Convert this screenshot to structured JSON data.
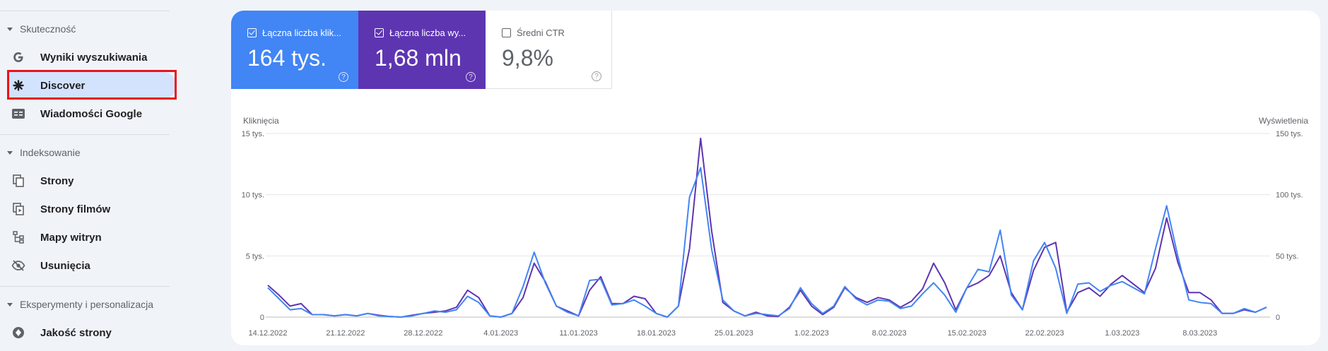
{
  "sidebar": {
    "sections": [
      {
        "label": "Skuteczność"
      },
      {
        "label": "Indeksowanie"
      },
      {
        "label": "Eksperymenty i personalizacja"
      }
    ],
    "items": [
      {
        "label": "Wyniki wyszukiwania",
        "icon": "google-g-icon"
      },
      {
        "label": "Discover",
        "icon": "discover-asterisk-icon"
      },
      {
        "label": "Wiadomości Google",
        "icon": "google-news-icon"
      },
      {
        "label": "Strony",
        "icon": "pages-icon"
      },
      {
        "label": "Strony filmów",
        "icon": "video-pages-icon"
      },
      {
        "label": "Mapy witryn",
        "icon": "sitemap-icon"
      },
      {
        "label": "Usunięcia",
        "icon": "removals-eye-off-icon"
      },
      {
        "label": "Jakość strony",
        "icon": "page-experience-icon"
      }
    ]
  },
  "metrics": [
    {
      "label": "Łączna liczba klik...",
      "value": "164 tys.",
      "checked": true,
      "color": "#4285f4"
    },
    {
      "label": "Łączna liczba wy...",
      "value": "1,68 mln",
      "checked": true,
      "color": "#5e35b1"
    },
    {
      "label": "Średni CTR",
      "value": "9,8%",
      "checked": false,
      "color": "#ffffff"
    }
  ],
  "help_glyph": "?",
  "chart_data": {
    "type": "line",
    "y_left_label": "Kliknięcia",
    "y_right_label": "Wyświetlenia",
    "y_left_ticks": [
      "0",
      "5 tys.",
      "10 tys.",
      "15 tys."
    ],
    "y_right_ticks": [
      "0",
      "50 tys.",
      "100 tys.",
      "150 tys."
    ],
    "ylim_left": [
      0,
      15000
    ],
    "ylim_right": [
      0,
      150000
    ],
    "x_tick_labels": [
      "14.12.2022",
      "21.12.2022",
      "28.12.2022",
      "4.01.2023",
      "11.01.2023",
      "18.01.2023",
      "25.01.2023",
      "1.02.2023",
      "8.02.2023",
      "15.02.2023",
      "22.02.2023",
      "1.03.2023",
      "8.03.2023"
    ],
    "x_tick_index": [
      0,
      7,
      14,
      21,
      28,
      35,
      42,
      49,
      56,
      63,
      70,
      77,
      84
    ],
    "grid": true,
    "series": [
      {
        "name": "Łączna liczba klik...",
        "axis": "left",
        "color": "#4285f4",
        "values": [
          2400,
          1500,
          600,
          700,
          200,
          200,
          100,
          200,
          100,
          300,
          100,
          50,
          0,
          100,
          300,
          500,
          400,
          600,
          1700,
          1200,
          100,
          0,
          300,
          2500,
          5300,
          2800,
          900,
          400,
          100,
          3000,
          3100,
          1000,
          1100,
          1400,
          900,
          300,
          0,
          900,
          9800,
          12200,
          5500,
          1400,
          500,
          100,
          300,
          200,
          100,
          700,
          2400,
          1100,
          300,
          900,
          2500,
          1500,
          1000,
          1400,
          1300,
          700,
          900,
          1900,
          2800,
          1800,
          400,
          2400,
          3900,
          3700,
          7100,
          1800,
          600,
          4600,
          6100,
          4000,
          300,
          2700,
          2800,
          2100,
          2600,
          2900,
          2400,
          1900,
          5600,
          9100,
          5000,
          1400,
          1200,
          1100,
          300,
          300,
          700,
          400,
          800
        ]
      },
      {
        "name": "Łączna liczba wy...",
        "axis": "right",
        "color": "#5e35b1",
        "values": [
          26000,
          18000,
          9000,
          11000,
          2000,
          2000,
          1000,
          2000,
          1000,
          3000,
          1500,
          500,
          0,
          1500,
          3000,
          4000,
          5000,
          8000,
          22000,
          16000,
          1000,
          0,
          3000,
          16000,
          44000,
          29000,
          9000,
          5000,
          1000,
          22000,
          33000,
          11000,
          11000,
          17000,
          15000,
          3000,
          0,
          9000,
          56000,
          146000,
          70000,
          12000,
          5000,
          1000,
          4000,
          1000,
          500,
          8000,
          22000,
          9000,
          2000,
          8000,
          24000,
          16000,
          12000,
          16000,
          14000,
          8000,
          13000,
          23000,
          44000,
          28000,
          6000,
          24000,
          28000,
          34000,
          50000,
          20000,
          6000,
          38000,
          57000,
          61000,
          4000,
          20000,
          24000,
          17000,
          27000,
          34000,
          27000,
          20000,
          40000,
          81000,
          45000,
          20000,
          20000,
          14000,
          3000,
          3000,
          6000,
          4000,
          8000
        ]
      }
    ]
  }
}
